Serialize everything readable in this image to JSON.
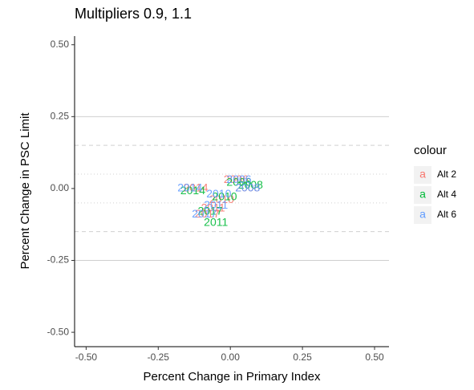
{
  "chart_data": {
    "type": "scatter",
    "title": "Multipliers 0.9, 1.1",
    "x_label": "Percent Change in Primary Index",
    "y_label": "Percent Change in PSC Limit",
    "xlim": [
      -0.54,
      0.55
    ],
    "ylim": [
      -0.55,
      0.53
    ],
    "xticks": [
      {
        "value": -0.5,
        "label": "-0.50"
      },
      {
        "value": -0.25,
        "label": "-0.25"
      },
      {
        "value": 0,
        "label": "0.00"
      },
      {
        "value": 0.25,
        "label": "0.25"
      },
      {
        "value": 0.5,
        "label": "0.50"
      }
    ],
    "yticks": [
      {
        "value": -0.5,
        "label": "-0.50"
      },
      {
        "value": -0.25,
        "label": "-0.25"
      },
      {
        "value": 0,
        "label": "0.00"
      },
      {
        "value": 0.25,
        "label": "0.25"
      },
      {
        "value": 0.5,
        "label": "0.50"
      }
    ],
    "reference_lines": [
      {
        "value": 0.25,
        "style": "solid"
      },
      {
        "value": -0.25,
        "style": "solid"
      },
      {
        "value": 0.15,
        "style": "dashed"
      },
      {
        "value": -0.15,
        "style": "dashed"
      },
      {
        "value": 0.05,
        "style": "dotted"
      },
      {
        "value": -0.05,
        "style": "dotted"
      }
    ],
    "legend_title": "colour",
    "legend_key_glyph": "a",
    "series": [
      {
        "name": "Alt 2",
        "color": "#F8766D",
        "x": [
          0.02,
          0.06,
          -0.03,
          -0.06,
          -0.12,
          -0.08
        ],
        "values": [
          0.03,
          0.0,
          -0.04,
          -0.07,
          0.0,
          -0.09
        ],
        "labels": [
          "2006",
          "2008",
          "2010",
          "2011",
          "2014",
          "2017"
        ]
      },
      {
        "name": "Alt 4",
        "color": "#00BA38",
        "x": [
          0.03,
          0.07,
          -0.02,
          -0.05,
          -0.13,
          -0.07
        ],
        "values": [
          0.02,
          0.01,
          -0.03,
          -0.12,
          -0.01,
          -0.08
        ],
        "labels": [
          "2006",
          "2008",
          "2010",
          "2011",
          "2014",
          "2017"
        ]
      },
      {
        "name": "Alt 6",
        "color": "#619CFF",
        "x": [
          0.03,
          0.06,
          -0.04,
          -0.05,
          -0.14,
          -0.09
        ],
        "values": [
          0.03,
          0.0,
          -0.02,
          -0.06,
          0.0,
          -0.09
        ],
        "labels": [
          "2006",
          "2008",
          "2010",
          "2011",
          "2014",
          "2017"
        ]
      }
    ]
  }
}
